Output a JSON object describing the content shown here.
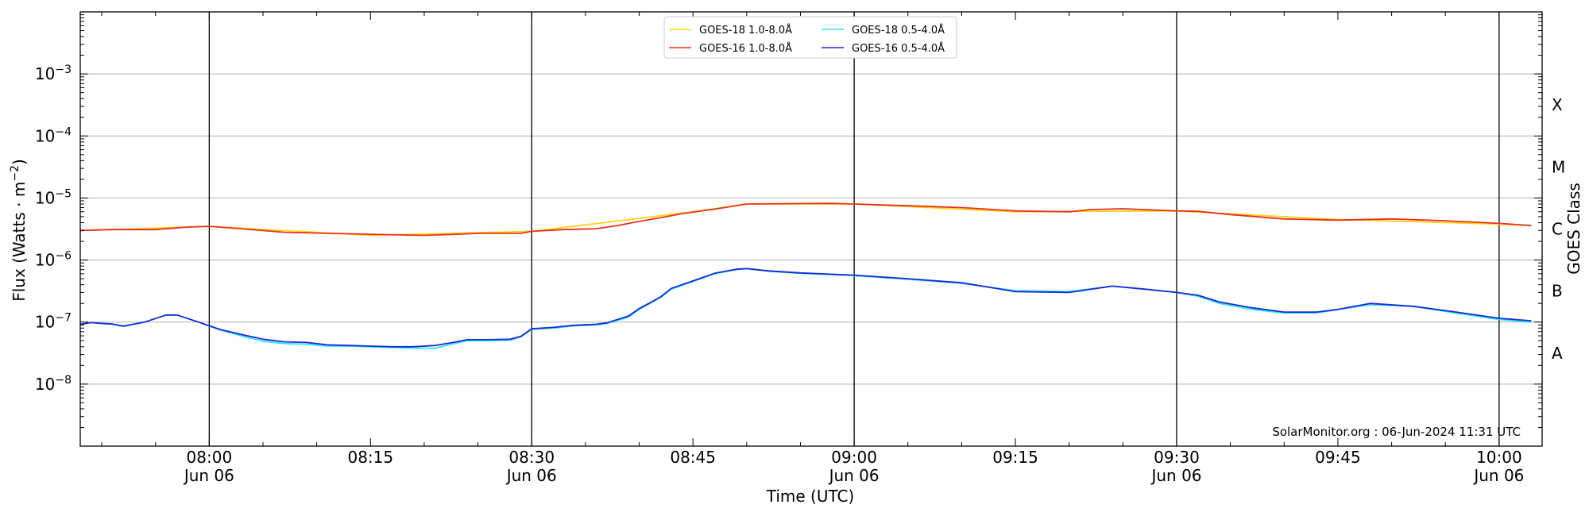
{
  "chart_data": {
    "type": "line",
    "xlabel": "Time (UTC)",
    "ylabel": "Flux (Watts · m",
    "ylabel_exp": "−2",
    "ylabel_close": ")",
    "y2label": "GOES Class",
    "yscale": "log",
    "ylim": [
      1e-09,
      0.01
    ],
    "xlim": [
      "07:48",
      "10:04"
    ],
    "credit": "SolarMonitor.org : 06-Jun-2024 11:31 UTC",
    "grid": "horizontal",
    "legend_position": "top-center",
    "y_ticks": [
      {
        "value": 1e-08,
        "base": "10",
        "exp": "−8"
      },
      {
        "value": 1e-07,
        "base": "10",
        "exp": "−7"
      },
      {
        "value": 1e-06,
        "base": "10",
        "exp": "−6"
      },
      {
        "value": 1e-05,
        "base": "10",
        "exp": "−5"
      },
      {
        "value": 0.0001,
        "base": "10",
        "exp": "−4"
      },
      {
        "value": 0.001,
        "base": "10",
        "exp": "−3"
      }
    ],
    "x_ticks": [
      {
        "time": "08:00",
        "label": "08:00",
        "sublabel": "Jun 06"
      },
      {
        "time": "08:15",
        "label": "08:15",
        "sublabel": ""
      },
      {
        "time": "08:30",
        "label": "08:30",
        "sublabel": "Jun 06"
      },
      {
        "time": "08:45",
        "label": "08:45",
        "sublabel": ""
      },
      {
        "time": "09:00",
        "label": "09:00",
        "sublabel": "Jun 06"
      },
      {
        "time": "09:15",
        "label": "09:15",
        "sublabel": ""
      },
      {
        "time": "09:30",
        "label": "09:30",
        "sublabel": "Jun 06"
      },
      {
        "time": "09:45",
        "label": "09:45",
        "sublabel": ""
      },
      {
        "time": "10:00",
        "label": "10:00",
        "sublabel": "Jun 06"
      }
    ],
    "vlines": [
      "08:00",
      "08:30",
      "09:00",
      "09:30",
      "10:00"
    ],
    "goes_classes": [
      {
        "label": "A",
        "value": 3.16e-08
      },
      {
        "label": "B",
        "value": 3.16e-07
      },
      {
        "label": "C",
        "value": 3.16e-06
      },
      {
        "label": "M",
        "value": 3.16e-05
      },
      {
        "label": "X",
        "value": 0.000316
      }
    ],
    "series": [
      {
        "name": "GOES-18 1.0-8.0Å",
        "color": "#ffd21a",
        "x": [
          "07:48",
          "08:00",
          "08:15",
          "08:30",
          "08:45",
          "08:50",
          "09:00",
          "09:15",
          "09:30",
          "09:45",
          "10:00",
          "10:03"
        ],
        "y": [
          3e-06,
          3.5e-06,
          2.5e-06,
          2.9e-06,
          6e-06,
          8e-06,
          8e-06,
          6e-06,
          6.2e-06,
          4.5e-06,
          3.8e-06,
          3.6e-06
        ]
      },
      {
        "name": "GOES-16 1.0-8.0Å",
        "color": "#e8321a",
        "x": [
          "07:48",
          "07:51",
          "07:55",
          "07:58",
          "08:00",
          "08:03",
          "08:07",
          "08:15",
          "08:20",
          "08:23",
          "08:25",
          "08:29",
          "08:30",
          "08:33",
          "08:36",
          "08:38",
          "08:40",
          "08:42",
          "08:44",
          "08:47",
          "08:50",
          "08:53",
          "08:58",
          "09:00",
          "09:05",
          "09:10",
          "09:15",
          "09:20",
          "09:22",
          "09:25",
          "09:30",
          "09:32",
          "09:35",
          "09:40",
          "09:45",
          "09:50",
          "09:55",
          "10:00",
          "10:03"
        ],
        "y": [
          3e-06,
          3.1e-06,
          3.1e-06,
          3.4e-06,
          3.5e-06,
          3.2e-06,
          2.8e-06,
          2.6e-06,
          2.5e-06,
          2.6e-06,
          2.7e-06,
          2.7e-06,
          2.9e-06,
          3.1e-06,
          3.2e-06,
          3.6e-06,
          4.2e-06,
          4.8e-06,
          5.6e-06,
          6.6e-06,
          8e-06,
          8.1e-06,
          8.2e-06,
          8e-06,
          7.5e-06,
          7e-06,
          6.2e-06,
          6e-06,
          6.5e-06,
          6.7e-06,
          6.2e-06,
          6.1e-06,
          5.4e-06,
          4.6e-06,
          4.4e-06,
          4.6e-06,
          4.3e-06,
          3.9e-06,
          3.6e-06
        ]
      },
      {
        "name": "GOES-18 0.5-4.0Å",
        "color": "#29e6f2",
        "x": [
          "07:48",
          "07:49",
          "07:51",
          "07:52",
          "07:54",
          "07:56",
          "07:57",
          "07:59",
          "08:01",
          "08:03",
          "08:05",
          "08:07",
          "08:09",
          "08:11",
          "08:13",
          "08:15",
          "08:17",
          "08:19",
          "08:21",
          "08:23",
          "08:24",
          "08:26",
          "08:28",
          "08:29",
          "08:30",
          "08:32",
          "08:34",
          "08:36",
          "08:37",
          "08:39",
          "08:40",
          "08:41",
          "08:42",
          "08:43",
          "08:45",
          "08:47",
          "08:49",
          "08:50",
          "08:52",
          "08:55",
          "09:00",
          "09:05",
          "09:10",
          "09:15",
          "09:20",
          "09:24",
          "09:27",
          "09:30",
          "09:32",
          "09:34",
          "09:37",
          "09:40",
          "09:43",
          "09:45",
          "09:48",
          "09:52",
          "09:56",
          "10:00",
          "10:03"
        ],
        "y": [
          9.2e-08,
          9.8e-08,
          9.2e-08,
          8.5e-08,
          1e-07,
          1.3e-07,
          1.3e-07,
          1e-07,
          7.5e-08,
          6e-08,
          4.9e-08,
          4.5e-08,
          4.4e-08,
          4.1e-08,
          4.1e-08,
          4e-08,
          3.9e-08,
          3.8e-08,
          3.8e-08,
          4.6e-08,
          5e-08,
          5e-08,
          5.1e-08,
          5.8e-08,
          7.6e-08,
          8e-08,
          8.7e-08,
          9e-08,
          9.5e-08,
          1.2e-07,
          1.6e-07,
          2e-07,
          2.5e-07,
          3.4e-07,
          4.5e-07,
          6e-07,
          7e-07,
          7.3e-07,
          6.6e-07,
          6.1e-07,
          5.6e-07,
          4.9e-07,
          4.2e-07,
          3.2e-07,
          3.1e-07,
          3.8e-07,
          3.4e-07,
          3e-07,
          2.6e-07,
          2e-07,
          1.6e-07,
          1.4e-07,
          1.4e-07,
          1.6e-07,
          1.9e-07,
          1.8e-07,
          1.4e-07,
          1.1e-07,
          1e-07
        ]
      },
      {
        "name": "GOES-16 0.5-4.0Å",
        "color": "#1a2ad4",
        "x": [
          "07:48",
          "07:49",
          "07:51",
          "07:52",
          "07:54",
          "07:56",
          "07:57",
          "07:59",
          "08:01",
          "08:03",
          "08:05",
          "08:07",
          "08:09",
          "08:11",
          "08:13",
          "08:15",
          "08:17",
          "08:19",
          "08:21",
          "08:23",
          "08:24",
          "08:26",
          "08:28",
          "08:29",
          "08:30",
          "08:32",
          "08:34",
          "08:36",
          "08:37",
          "08:39",
          "08:40",
          "08:41",
          "08:42",
          "08:43",
          "08:45",
          "08:47",
          "08:49",
          "08:50",
          "08:52",
          "08:55",
          "09:00",
          "09:05",
          "09:10",
          "09:15",
          "09:20",
          "09:24",
          "09:27",
          "09:30",
          "09:32",
          "09:34",
          "09:37",
          "09:40",
          "09:43",
          "09:45",
          "09:48",
          "09:52",
          "09:56",
          "10:00",
          "10:03"
        ],
        "y": [
          9.2e-08,
          9.8e-08,
          9.3e-08,
          8.6e-08,
          1e-07,
          1.3e-07,
          1.3e-07,
          1e-07,
          7.6e-08,
          6.3e-08,
          5.3e-08,
          4.8e-08,
          4.7e-08,
          4.3e-08,
          4.2e-08,
          4.1e-08,
          4e-08,
          4e-08,
          4.2e-08,
          4.8e-08,
          5.2e-08,
          5.2e-08,
          5.3e-08,
          5.9e-08,
          7.8e-08,
          8.2e-08,
          8.9e-08,
          9.2e-08,
          9.7e-08,
          1.25e-07,
          1.65e-07,
          2.05e-07,
          2.55e-07,
          3.5e-07,
          4.6e-07,
          6.1e-07,
          7.1e-07,
          7.3e-07,
          6.7e-07,
          6.2e-07,
          5.7e-07,
          5e-07,
          4.3e-07,
          3.1e-07,
          3e-07,
          3.8e-07,
          3.4e-07,
          3e-07,
          2.7e-07,
          2.1e-07,
          1.7e-07,
          1.45e-07,
          1.45e-07,
          1.6e-07,
          2e-07,
          1.8e-07,
          1.45e-07,
          1.15e-07,
          1.05e-07
        ]
      }
    ]
  }
}
